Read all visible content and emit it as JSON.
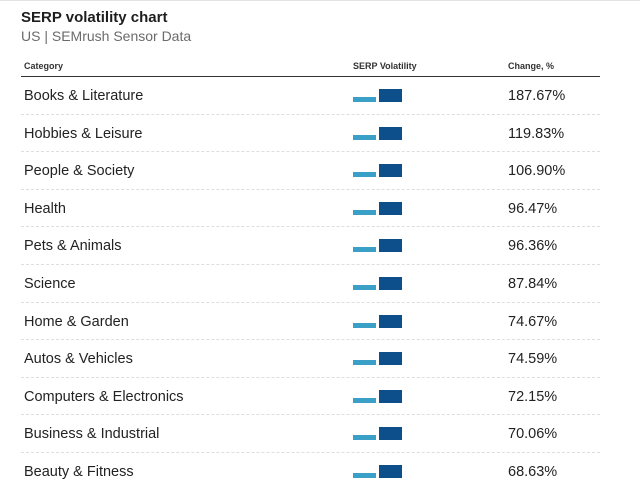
{
  "title": "SERP volatility chart",
  "subtitle": "US | SEMrush Sensor Data",
  "columns": {
    "category": "Category",
    "volatility": "SERP Volatility",
    "change": "Change, %"
  },
  "colors": {
    "previous": "#3aa0c8",
    "current": "#0d4f8b"
  },
  "chart_data": {
    "type": "table",
    "columns": [
      "Category",
      "SERP Volatility",
      "Change, %"
    ],
    "rows": [
      {
        "category": "Books & Literature",
        "change": "187.67%",
        "change_value": 187.67
      },
      {
        "category": "Hobbies & Leisure",
        "change": "119.83%",
        "change_value": 119.83
      },
      {
        "category": "People & Society",
        "change": "106.90%",
        "change_value": 106.9
      },
      {
        "category": "Health",
        "change": "96.47%",
        "change_value": 96.47
      },
      {
        "category": "Pets & Animals",
        "change": "96.36%",
        "change_value": 96.36
      },
      {
        "category": "Science",
        "change": "87.84%",
        "change_value": 87.84
      },
      {
        "category": "Home & Garden",
        "change": "74.67%",
        "change_value": 74.67
      },
      {
        "category": "Autos & Vehicles",
        "change": "74.59%",
        "change_value": 74.59
      },
      {
        "category": "Computers & Electronics",
        "change": "72.15%",
        "change_value": 72.15
      },
      {
        "category": "Business & Industrial",
        "change": "70.06%",
        "change_value": 70.06
      },
      {
        "category": "Beauty & Fitness",
        "change": "68.63%",
        "change_value": 68.63
      }
    ]
  }
}
